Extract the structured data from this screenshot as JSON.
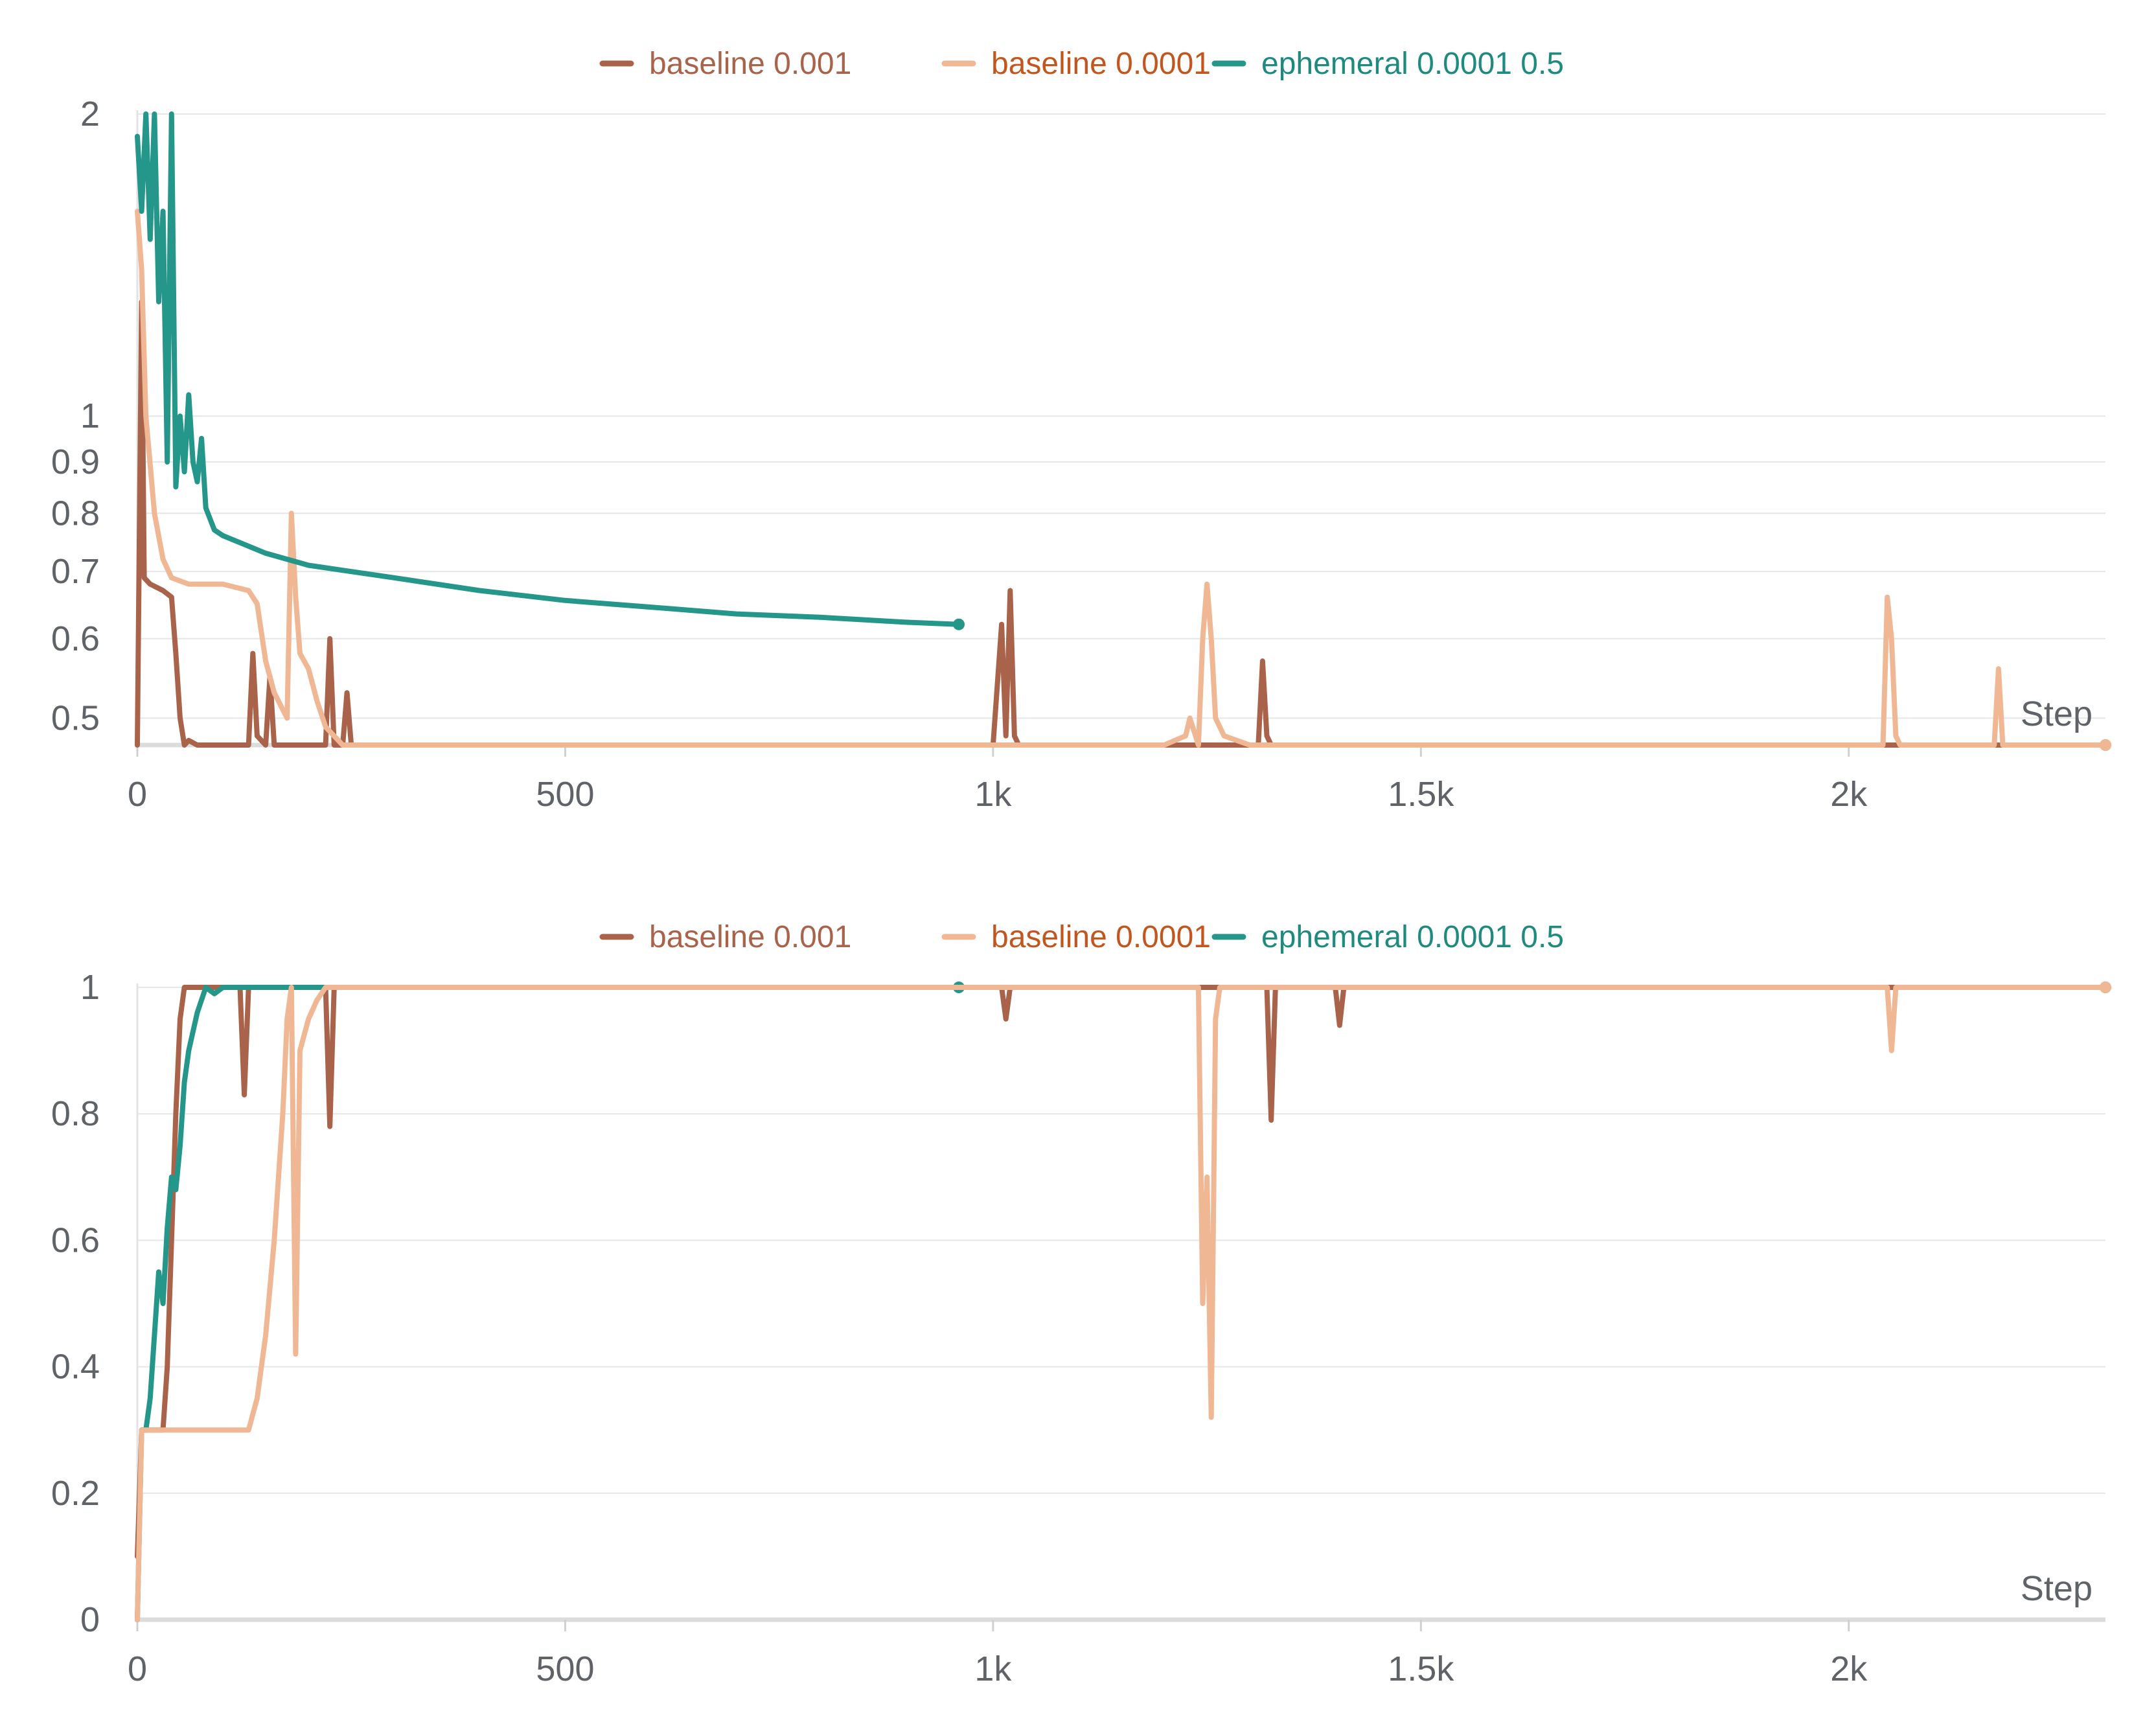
{
  "colors": {
    "baseline_0001": "#a9634a",
    "baseline_00001": "#f0b794",
    "ephemeral": "#24968a",
    "legend_baseline_0001_text": "#a9634a",
    "legend_baseline_00001_text": "#c2561f",
    "legend_ephemeral_text": "#1f8a7e",
    "tick": "#5f6368",
    "grid": "#e6e6e6"
  },
  "chart_data": [
    {
      "type": "line",
      "title": "",
      "xlabel": "Step",
      "ylabel": "",
      "yscale": "log",
      "xlim": [
        0,
        2300
      ],
      "ylim": [
        0.47,
        2
      ],
      "x_ticks": [
        0,
        500,
        1000,
        1500,
        2000
      ],
      "x_tick_labels": [
        "0",
        "500",
        "1k",
        "1.5k",
        "2k"
      ],
      "y_ticks": [
        0.5,
        0.6,
        0.7,
        0.8,
        0.9,
        1,
        2
      ],
      "y_tick_labels": [
        "0.5",
        "0.6",
        "0.7",
        "0.8",
        "0.9",
        "1",
        "2"
      ],
      "grid": true,
      "legend": "top-center",
      "series": [
        {
          "name": "baseline 0.001",
          "x": [
            0,
            5,
            8,
            15,
            30,
            40,
            45,
            50,
            55,
            60,
            70,
            90,
            120,
            130,
            135,
            140,
            150,
            155,
            160,
            170,
            200,
            220,
            225,
            230,
            240,
            245,
            250,
            255,
            300,
            500,
            1000,
            1010,
            1015,
            1020,
            1025,
            1030,
            1050,
            1300,
            1310,
            1315,
            1320,
            1325,
            1330,
            1400,
            2000,
            2300
          ],
          "y": [
            0.47,
            1.3,
            0.69,
            0.68,
            0.67,
            0.66,
            0.58,
            0.5,
            0.47,
            0.475,
            0.47,
            0.47,
            0.47,
            0.47,
            0.58,
            0.48,
            0.47,
            0.55,
            0.47,
            0.47,
            0.47,
            0.47,
            0.6,
            0.47,
            0.47,
            0.53,
            0.47,
            0.47,
            0.47,
            0.47,
            0.47,
            0.62,
            0.48,
            0.67,
            0.48,
            0.47,
            0.47,
            0.47,
            0.47,
            0.57,
            0.48,
            0.47,
            0.47,
            0.47,
            0.47,
            0.47
          ]
        },
        {
          "name": "baseline 0.0001",
          "x": [
            0,
            5,
            10,
            20,
            30,
            40,
            60,
            100,
            130,
            140,
            150,
            160,
            175,
            180,
            185,
            190,
            200,
            210,
            220,
            240,
            260,
            300,
            400,
            500,
            800,
            1000,
            1200,
            1225,
            1230,
            1240,
            1245,
            1250,
            1255,
            1260,
            1270,
            1300,
            1600,
            2000,
            2040,
            2045,
            2050,
            2055,
            2060,
            2100,
            2170,
            2175,
            2180,
            2200,
            2300
          ],
          "y": [
            1.6,
            1.4,
            1.0,
            0.8,
            0.72,
            0.69,
            0.68,
            0.68,
            0.67,
            0.65,
            0.57,
            0.53,
            0.5,
            0.8,
            0.66,
            0.58,
            0.56,
            0.52,
            0.49,
            0.47,
            0.47,
            0.47,
            0.47,
            0.47,
            0.47,
            0.47,
            0.47,
            0.48,
            0.5,
            0.47,
            0.6,
            0.68,
            0.6,
            0.5,
            0.48,
            0.47,
            0.47,
            0.47,
            0.47,
            0.66,
            0.6,
            0.48,
            0.47,
            0.47,
            0.47,
            0.56,
            0.47,
            0.47,
            0.47
          ]
        },
        {
          "name": "ephemeral 0.0001 0.5",
          "x": [
            0,
            5,
            10,
            15,
            20,
            25,
            30,
            35,
            40,
            45,
            50,
            55,
            60,
            65,
            70,
            75,
            80,
            90,
            100,
            150,
            200,
            300,
            400,
            500,
            600,
            700,
            800,
            900,
            960
          ],
          "y": [
            1.9,
            1.6,
            2.0,
            1.5,
            2.0,
            1.3,
            1.6,
            0.9,
            2.0,
            0.85,
            1.0,
            0.88,
            1.05,
            0.9,
            0.86,
            0.95,
            0.81,
            0.77,
            0.76,
            0.73,
            0.71,
            0.69,
            0.67,
            0.655,
            0.645,
            0.635,
            0.63,
            0.623,
            0.62
          ]
        }
      ]
    },
    {
      "type": "line",
      "title": "",
      "xlabel": "Step",
      "ylabel": "",
      "xlim": [
        0,
        2300
      ],
      "ylim": [
        0,
        1
      ],
      "x_ticks": [
        0,
        500,
        1000,
        1500,
        2000
      ],
      "x_tick_labels": [
        "0",
        "500",
        "1k",
        "1.5k",
        "2k"
      ],
      "y_ticks": [
        0,
        0.2,
        0.4,
        0.6,
        0.8,
        1
      ],
      "y_tick_labels": [
        "0",
        "0.2",
        "0.4",
        "0.6",
        "0.8",
        "1"
      ],
      "grid": true,
      "legend": "top-center",
      "series": [
        {
          "name": "baseline 0.001",
          "x": [
            0,
            5,
            10,
            20,
            30,
            35,
            40,
            45,
            50,
            55,
            60,
            100,
            120,
            125,
            130,
            135,
            140,
            150,
            200,
            220,
            225,
            230,
            235,
            240,
            300,
            500,
            1000,
            1010,
            1015,
            1020,
            1025,
            1030,
            1050,
            1300,
            1320,
            1325,
            1330,
            1335,
            1400,
            1405,
            1410,
            1415,
            1420,
            1500,
            2000,
            2300
          ],
          "y": [
            0.1,
            0.3,
            0.3,
            0.3,
            0.3,
            0.4,
            0.6,
            0.8,
            0.95,
            1.0,
            1.0,
            1.0,
            1.0,
            0.83,
            1.0,
            1.0,
            1.0,
            1.0,
            1.0,
            1.0,
            0.78,
            1.0,
            1.0,
            1.0,
            1.0,
            1.0,
            1.0,
            1.0,
            0.95,
            1.0,
            1.0,
            1.0,
            1.0,
            1.0,
            1.0,
            0.79,
            1.0,
            1.0,
            1.0,
            0.94,
            1.0,
            1.0,
            1.0,
            1.0,
            1.0,
            1.0
          ]
        },
        {
          "name": "baseline 0.0001",
          "x": [
            0,
            5,
            10,
            20,
            50,
            100,
            130,
            140,
            150,
            160,
            170,
            175,
            180,
            185,
            190,
            200,
            210,
            220,
            240,
            260,
            300,
            500,
            1000,
            1240,
            1245,
            1250,
            1255,
            1260,
            1265,
            1300,
            2000,
            2045,
            2050,
            2055,
            2060,
            2300
          ],
          "y": [
            0.0,
            0.3,
            0.3,
            0.3,
            0.3,
            0.3,
            0.3,
            0.35,
            0.45,
            0.6,
            0.8,
            0.95,
            1.0,
            0.42,
            0.9,
            0.95,
            0.98,
            1.0,
            1.0,
            1.0,
            1.0,
            1.0,
            1.0,
            1.0,
            0.5,
            0.7,
            0.32,
            0.95,
            1.0,
            1.0,
            1.0,
            1.0,
            0.9,
            1.0,
            1.0,
            1.0
          ]
        },
        {
          "name": "ephemeral 0.0001 0.5",
          "x": [
            0,
            5,
            10,
            15,
            20,
            25,
            30,
            35,
            40,
            45,
            50,
            55,
            60,
            65,
            70,
            80,
            90,
            100,
            150,
            200,
            500,
            960
          ],
          "y": [
            0.0,
            0.3,
            0.3,
            0.35,
            0.45,
            0.55,
            0.5,
            0.62,
            0.7,
            0.68,
            0.75,
            0.85,
            0.9,
            0.93,
            0.96,
            1.0,
            0.99,
            1.0,
            1.0,
            1.0,
            1.0,
            1.0
          ]
        }
      ]
    }
  ]
}
